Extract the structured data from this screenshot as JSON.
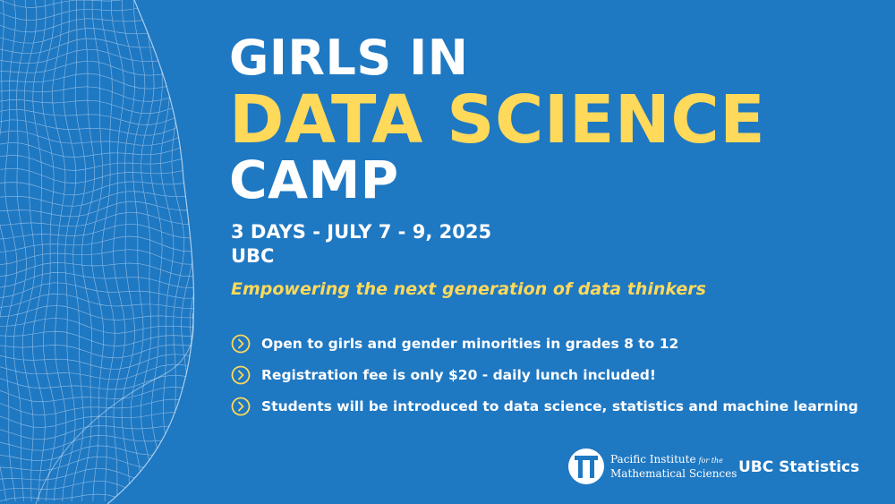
{
  "title": {
    "line1": "GIRLS IN",
    "line2": "DATA SCIENCE",
    "line3": "CAMP"
  },
  "dates": "3 DAYS - JULY 7 - 9, 2025",
  "location": "UBC",
  "tagline": "Empowering the next generation of data thinkers",
  "bullets": [
    "Open to girls and gender minorities in grades 8 to 12",
    "Registration fee is only $20 - daily lunch included!",
    "Students will be introduced to data science, statistics and machine learning"
  ],
  "sponsors": {
    "pims_line1": "Pacific Institute",
    "pims_for_the": "for the",
    "pims_line2": "Mathematical Sciences",
    "ubc": "UBC Statistics"
  },
  "colors": {
    "background": "#1f78c2",
    "accent": "#ffd95a",
    "text": "#ffffff"
  },
  "icons": {
    "bullet": "chevron-circle-right-icon",
    "decoration": "wireframe-mesh"
  }
}
